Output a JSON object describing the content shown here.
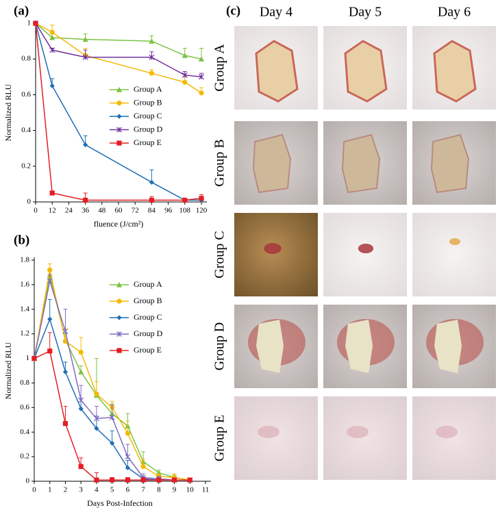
{
  "chart_data": [
    {
      "type": "line",
      "panel_label": "(a)",
      "x_label": "fluence (J/cm²)",
      "y_label": "Normalized RLU",
      "x": [
        0,
        12,
        36,
        84,
        108,
        120
      ],
      "xlim": [
        0,
        120
      ],
      "xticks": [
        0,
        12,
        24,
        36,
        48,
        60,
        72,
        84,
        96,
        108,
        120
      ],
      "ylim": [
        0,
        1
      ],
      "yticks": [
        0,
        0.2,
        0.4,
        0.6,
        0.8,
        1
      ],
      "series": [
        {
          "name": "Group A",
          "color": "#7cc242",
          "marker": "triangle",
          "values": [
            1,
            0.92,
            0.91,
            0.9,
            0.82,
            0.8
          ],
          "errors": [
            0,
            0.02,
            0.03,
            0.03,
            0.04,
            0.06
          ]
        },
        {
          "name": "Group B",
          "color": "#f5b800",
          "marker": "circle",
          "values": [
            1,
            0.95,
            0.82,
            0.72,
            0.67,
            0.61
          ],
          "errors": [
            0,
            0.04,
            0.04,
            0.02,
            0.03,
            0.03
          ]
        },
        {
          "name": "Group C",
          "color": "#1f6db4",
          "marker": "diamond",
          "values": [
            1,
            0.65,
            0.32,
            0.11,
            0.01,
            0.01
          ],
          "errors": [
            0,
            0.04,
            0.05,
            0.07,
            0.01,
            0.01
          ]
        },
        {
          "name": "Group D",
          "color": "#7030a0",
          "marker": "cross",
          "values": [
            1,
            0.85,
            0.81,
            0.81,
            0.71,
            0.7
          ],
          "errors": [
            0,
            0.01,
            0.04,
            0.03,
            0.02,
            0.02
          ]
        },
        {
          "name": "Group E",
          "color": "#e31e24",
          "marker": "square",
          "values": [
            1,
            0.05,
            0.01,
            0.01,
            0.01,
            0.02
          ],
          "errors": [
            0,
            0.01,
            0.04,
            0.02,
            0.01,
            0.02
          ]
        }
      ]
    },
    {
      "type": "line",
      "panel_label": "(b)",
      "x_label": "Days Post-Infection",
      "y_label": "Normalized RLU",
      "x": [
        0,
        1,
        2,
        3,
        4,
        5,
        6,
        7,
        8,
        9,
        10
      ],
      "xlim": [
        0,
        11
      ],
      "xticks": [
        0,
        1,
        2,
        3,
        4,
        5,
        6,
        7,
        8,
        9,
        10,
        11
      ],
      "ylim": [
        0,
        1.8
      ],
      "yticks": [
        0,
        0.2,
        0.4,
        0.6,
        0.8,
        1,
        1.2,
        1.4,
        1.6,
        1.8
      ],
      "series": [
        {
          "name": "Group A",
          "color": "#7cc242",
          "marker": "triangle",
          "values": [
            1,
            1.68,
            1.15,
            0.89,
            0.7,
            0.55,
            0.45,
            0.16,
            0.07,
            0.03,
            0.01
          ],
          "errors": [
            0,
            0.05,
            0.05,
            0.05,
            0.3,
            0.08,
            0.1,
            0.08,
            0.02,
            0.02,
            0.01
          ]
        },
        {
          "name": "Group B",
          "color": "#f5b800",
          "marker": "circle",
          "values": [
            1,
            1.72,
            1.14,
            1.05,
            0.71,
            0.6,
            0.39,
            0.12,
            0.04,
            0.03,
            0.01
          ],
          "errors": [
            0,
            0.05,
            0.1,
            0.12,
            0.1,
            0.05,
            0.1,
            0.06,
            0.02,
            0.03,
            0.01
          ]
        },
        {
          "name": "Group C",
          "color": "#1f6db4",
          "marker": "diamond",
          "values": [
            1,
            1.32,
            0.89,
            0.59,
            0.43,
            0.31,
            0.11,
            0.02,
            0.01,
            0.01,
            0.01
          ],
          "errors": [
            0,
            0.16,
            0.08,
            0.08,
            0.1,
            0.1,
            0.06,
            0.02,
            0.01,
            0.01,
            0.01
          ]
        },
        {
          "name": "Group D",
          "color": "#7f6bbf",
          "marker": "cross",
          "values": [
            1,
            1.63,
            1.22,
            0.66,
            0.51,
            0.52,
            0.2,
            0.03,
            0.02,
            0.01,
            0.01
          ],
          "errors": [
            0,
            0.05,
            0.18,
            0.12,
            0.1,
            0.1,
            0.1,
            0.03,
            0.02,
            0.01,
            0.01
          ]
        },
        {
          "name": "Group E",
          "color": "#e31e24",
          "marker": "square",
          "values": [
            1,
            1.06,
            0.47,
            0.12,
            0.01,
            0.01,
            0.01,
            0.01,
            0.01,
            0.01,
            0.01
          ],
          "errors": [
            0,
            0.15,
            0.14,
            0.07,
            0.06,
            0.02,
            0.02,
            0.02,
            0.01,
            0.01,
            0.01
          ]
        }
      ]
    }
  ],
  "photo_grid": {
    "label": "(c)",
    "columns": [
      "Day 4",
      "Day 5",
      "Day 6"
    ],
    "rows": [
      "Group A",
      "Group B",
      "Group C",
      "Group D",
      "Group E"
    ]
  }
}
